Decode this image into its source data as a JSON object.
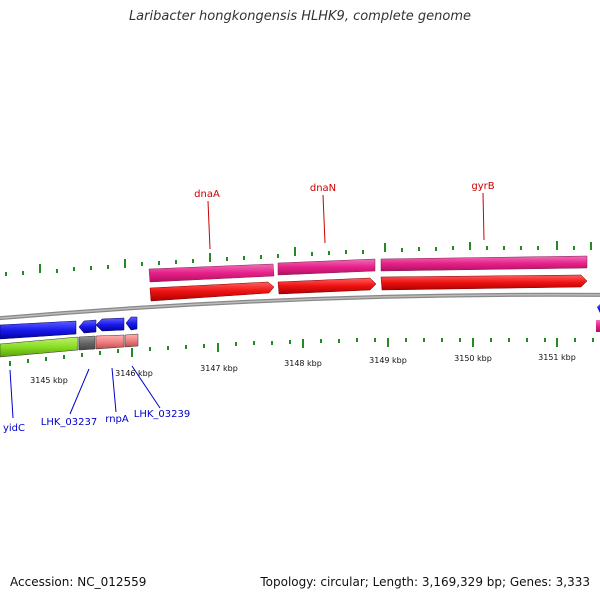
{
  "title": "Laribacter hongkongensis HLHK9, complete genome",
  "footer": {
    "accession": "Accession: NC_012559",
    "summary": "Topology: circular; Length: 3,169,329 bp; Genes: 3,333"
  },
  "scale_labels": [
    "3145 kbp",
    "3146 kbp",
    "3147 kbp",
    "3148 kbp",
    "3149 kbp",
    "3150 kbp",
    "3151 kbp"
  ],
  "gene_labels_top": [
    "dnaA",
    "dnaN",
    "gyrB"
  ],
  "gene_labels_bottom": [
    "yidC",
    "LHK_03237",
    "rnpA",
    "LHK_03239"
  ],
  "colors": {
    "top_label": "#cc0000",
    "bottom_label": "#0000cc",
    "pink": "#e8208a",
    "red": "#ee1111",
    "blue": "#1a1aee",
    "green": "#88dd22",
    "salmon": "#f08080",
    "grey": "#666666",
    "tick": "#228b22",
    "backbone": "#777777"
  }
}
